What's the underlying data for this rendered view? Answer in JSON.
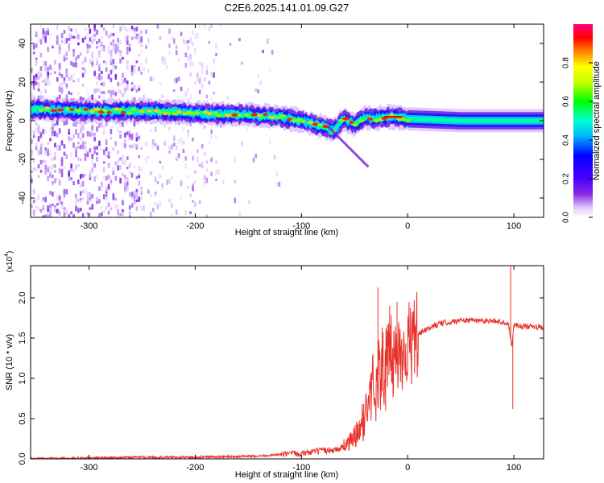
{
  "title": "C2E6.2025.141.01.09.G27",
  "chart_data": [
    {
      "type": "heatmap",
      "xlabel": "Height of straight line (km)",
      "ylabel": "Frequency (Hz)",
      "xlim": [
        -355,
        128
      ],
      "ylim": [
        -50,
        50
      ],
      "x_ticks": [
        -300,
        -200,
        -100,
        0,
        100
      ],
      "y_ticks": [
        -40,
        -20,
        0,
        20,
        40
      ],
      "colorbar": {
        "label": "Normalized spectral amplitude",
        "range": [
          0.0,
          1.0
        ],
        "ticks": [
          0.0,
          0.2,
          0.4,
          0.6,
          0.8
        ],
        "tick_labels": [
          "0.0",
          "0.2",
          "0.4",
          "0.6",
          "0.8"
        ],
        "colormap": "rainbow (white-violet-blue-cyan-green-yellow-red-magenta)"
      },
      "ridge": {
        "description": "dominant frequency track",
        "height_km": [
          -350,
          -300,
          -250,
          -200,
          -150,
          -120,
          -100,
          -80,
          -70,
          -60,
          -50,
          -40,
          -30,
          -20,
          -10,
          0,
          50,
          100,
          128
        ],
        "frequency_hz": [
          6,
          5,
          5,
          4,
          3,
          2,
          0,
          -3,
          -5,
          1,
          -2,
          2,
          1,
          2,
          2,
          1,
          0,
          0,
          0
        ]
      }
    },
    {
      "type": "line",
      "xlabel": "Height of straight line (km)",
      "ylabel": "SNR (10 * v/v)",
      "y_multiplier_label": "(x10",
      "y_multiplier_exponent": "4",
      "xlim": [
        -355,
        128
      ],
      "ylim": [
        0,
        2.4
      ],
      "x_ticks": [
        -300,
        -200,
        -100,
        0,
        100
      ],
      "y_ticks": [
        0.0,
        0.5,
        1.0,
        1.5,
        2.0
      ],
      "y_tick_labels": [
        "0.0",
        "0.5",
        "1.0",
        "1.5",
        "2.0"
      ],
      "color": "#e8332b",
      "series": [
        {
          "x": [
            -355,
            -300,
            -250,
            -200,
            -150,
            -120,
            -100,
            -80,
            -65,
            -55,
            -45,
            -40,
            -35,
            -30,
            -25,
            -20,
            -15,
            -10,
            -5,
            0,
            10,
            20,
            30,
            50,
            70,
            90,
            95,
            98,
            100,
            105,
            115,
            128
          ],
          "y": [
            0.0,
            0.01,
            0.02,
            0.02,
            0.03,
            0.05,
            0.07,
            0.1,
            0.12,
            0.2,
            0.35,
            0.55,
            0.8,
            1.0,
            1.1,
            1.15,
            1.25,
            1.3,
            1.35,
            1.4,
            1.55,
            1.62,
            1.68,
            1.72,
            1.72,
            1.7,
            1.68,
            1.4,
            1.67,
            1.65,
            1.64,
            1.63
          ],
          "spikes": [
            {
              "x": -28,
              "y": 2.13
            },
            {
              "x": -17,
              "y": 1.9
            },
            {
              "x": -10,
              "y": 1.95
            },
            {
              "x": 97,
              "y": 2.4
            },
            {
              "x": 99,
              "y": 0.62
            }
          ]
        }
      ]
    }
  ]
}
